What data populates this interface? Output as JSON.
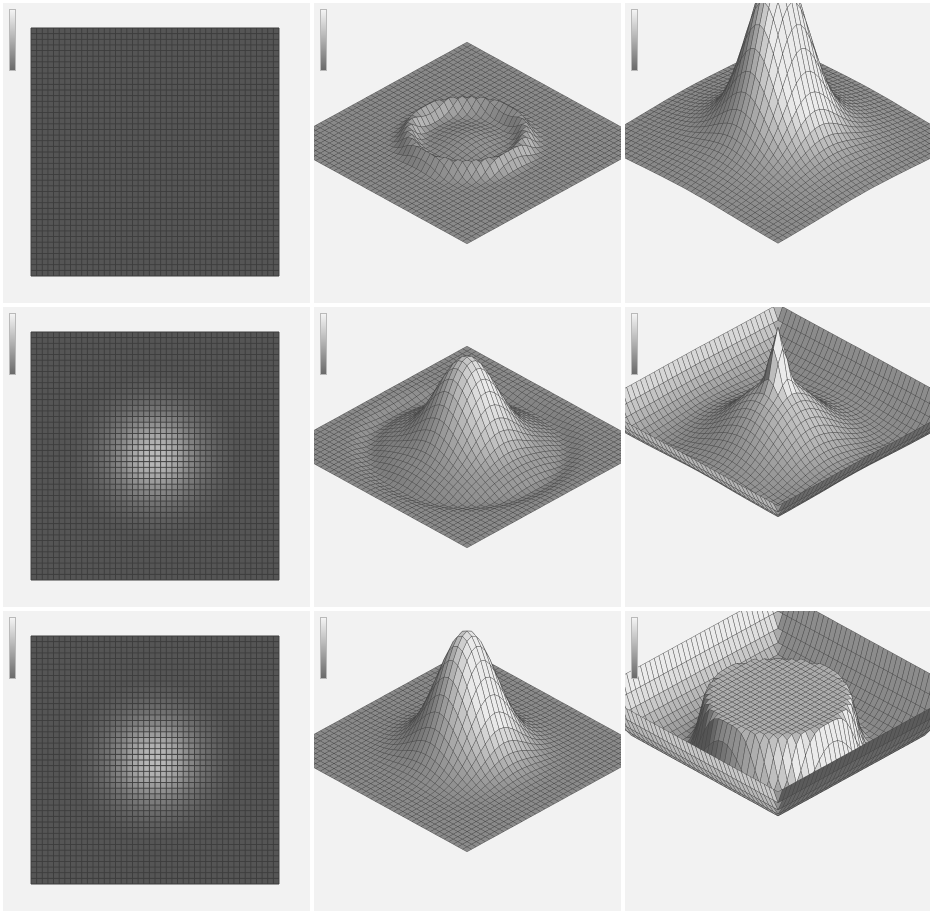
{
  "panels": [
    {
      "id": "r1c1",
      "view": "top",
      "state": "flat"
    },
    {
      "id": "r1c2",
      "view": "3d",
      "state": "ring"
    },
    {
      "id": "r1c3",
      "view": "3d",
      "state": "tall-peak"
    },
    {
      "id": "r2c1",
      "view": "top",
      "state": "bump"
    },
    {
      "id": "r2c2",
      "view": "3d",
      "state": "bump"
    },
    {
      "id": "r2c3",
      "view": "3d",
      "state": "spike"
    },
    {
      "id": "r3c1",
      "view": "top",
      "state": "bump"
    },
    {
      "id": "r3c2",
      "view": "3d",
      "state": "peak"
    },
    {
      "id": "r3c3",
      "view": "3d",
      "state": "plateau"
    }
  ],
  "colors": {
    "panel_bg": "#f2f2f2",
    "mesh_dark": "#5b5b5b",
    "mesh_light": "#e0e0e0",
    "grid_line": "#3a3a3a"
  }
}
